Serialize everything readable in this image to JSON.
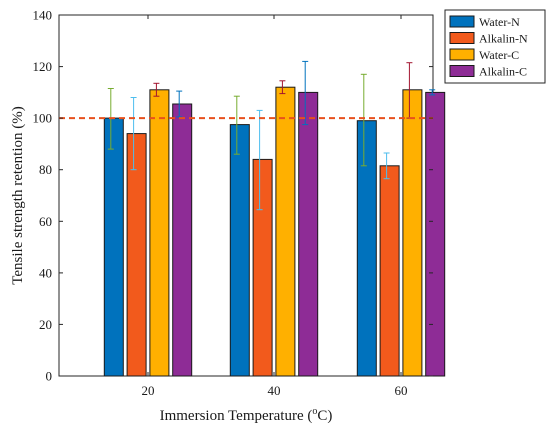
{
  "chart_data": {
    "type": "bar",
    "categories": [
      "20",
      "40",
      "60"
    ],
    "series": [
      {
        "name": "Water-N",
        "color": "#0072BD",
        "values": [
          100,
          97.5,
          99
        ],
        "err_low": [
          88,
          86,
          81.5
        ],
        "err_high": [
          111.5,
          108.5,
          117
        ],
        "err_color": "#77AC30"
      },
      {
        "name": "Alkalin-N",
        "color": "#F25A1C",
        "values": [
          94,
          84,
          81.5
        ],
        "err_low": [
          80,
          64.5,
          76.5
        ],
        "err_high": [
          108,
          103,
          86.5
        ],
        "err_color": "#4DBEEE"
      },
      {
        "name": "Water-C",
        "color": "#FFB000",
        "values": [
          111,
          112,
          111
        ],
        "err_low": [
          108.5,
          109.5,
          100
        ],
        "err_high": [
          113.5,
          114.5,
          121.5
        ],
        "err_color": "#A2142F"
      },
      {
        "name": "Alkalin-C",
        "color": "#8E2C96",
        "values": [
          105.5,
          110,
          110
        ],
        "err_low": [
          100.5,
          97.5,
          109
        ],
        "err_high": [
          110.5,
          122,
          111
        ],
        "err_color": "#0072BD"
      }
    ],
    "reference_line": {
      "y": 100,
      "color": "#E8501C",
      "style": "dashed"
    },
    "xlabel": "Immersion Temperature (°C)",
    "xlabel_prefix": "Immersion Temperature (",
    "xlabel_sup": "o",
    "xlabel_suffix": "C)",
    "ylabel": "Tensile strength retention (%)",
    "ylim": [
      0,
      140
    ],
    "yticks": [
      "0",
      "20",
      "40",
      "60",
      "80",
      "100",
      "120",
      "140"
    ],
    "legend_position": "outside-top-right",
    "grid": false
  }
}
